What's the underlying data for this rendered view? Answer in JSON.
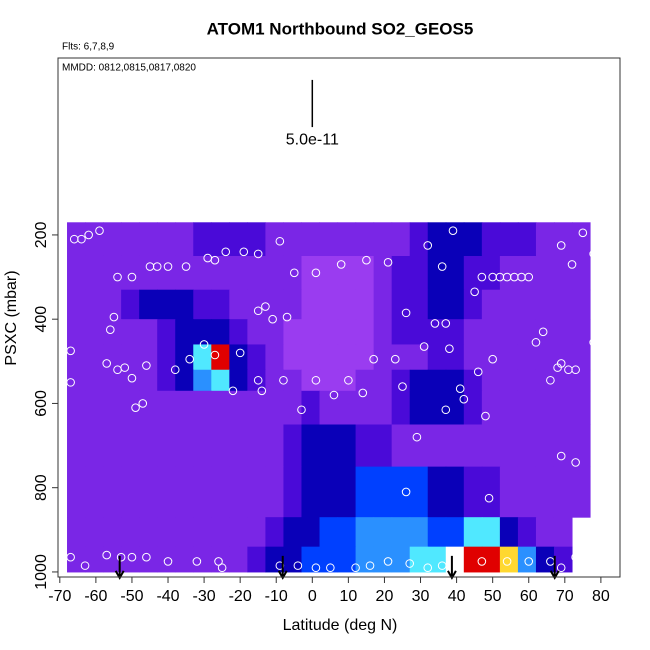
{
  "chart_data": {
    "type": "heatmap",
    "title": "ATOM1 Northbound SO2_GEOS5",
    "flights": "Flts: 6,7,8,9",
    "dates": "MMDD: 0812,0815,0817,0820",
    "x_label": "Latitude (deg N)",
    "y_label": "PSXC (mbar)",
    "xlim": [
      -70.5,
      85.3
    ],
    "ylim": [
      -220,
      1012
    ],
    "y_reversed": true,
    "xticks": [
      -70,
      -60,
      -50,
      -40,
      -30,
      -20,
      -10,
      0,
      10,
      20,
      30,
      40,
      50,
      60,
      70,
      80
    ],
    "yticks": [
      200,
      400,
      600,
      800,
      1000
    ],
    "colorscale": [
      "#9a3cf0",
      "#7a26e6",
      "#4a0ad8",
      "#0a00b8",
      "#0040ff",
      "#2a90ff",
      "#50e8ff",
      "#ffffff",
      "#ffd830",
      "#e00000"
    ],
    "heatmap": {
      "lat_edges": [
        -68,
        -63,
        -58,
        -53,
        -48,
        -43,
        -38,
        -33,
        -28,
        -23,
        -18,
        -13,
        -8,
        -3,
        2,
        7,
        12,
        17,
        22,
        27,
        32,
        37,
        42,
        47,
        52,
        57,
        62,
        67,
        72,
        77
      ],
      "pressure_edges": [
        170,
        250,
        330,
        400,
        460,
        520,
        570,
        650,
        750,
        870,
        940,
        1000
      ],
      "values": [
        [
          1,
          1,
          1,
          1,
          1,
          1,
          1,
          2,
          2,
          2,
          2,
          1,
          1,
          1,
          1,
          1,
          1,
          1,
          1,
          2,
          3,
          3,
          3,
          2,
          2,
          2,
          1,
          1,
          1
        ],
        [
          1,
          1,
          1,
          1,
          1,
          1,
          1,
          1,
          1,
          1,
          1,
          1,
          1,
          0,
          0,
          0,
          0,
          1,
          2,
          2,
          3,
          3,
          2,
          2,
          1,
          1,
          1,
          1,
          1
        ],
        [
          1,
          1,
          1,
          2,
          3,
          3,
          3,
          2,
          2,
          1,
          1,
          1,
          1,
          0,
          0,
          0,
          0,
          1,
          2,
          2,
          3,
          3,
          2,
          1,
          1,
          1,
          1,
          1,
          1
        ],
        [
          1,
          1,
          1,
          1,
          1,
          2,
          3,
          3,
          3,
          2,
          1,
          1,
          0,
          0,
          0,
          0,
          0,
          1,
          2,
          2,
          2,
          2,
          1,
          1,
          1,
          1,
          1,
          1,
          1
        ],
        [
          1,
          1,
          1,
          1,
          1,
          2,
          3,
          6,
          9,
          3,
          2,
          1,
          0,
          0,
          0,
          0,
          0,
          1,
          1,
          1,
          2,
          2,
          1,
          1,
          1,
          1,
          1,
          1,
          1
        ],
        [
          1,
          1,
          1,
          1,
          1,
          2,
          3,
          5,
          6,
          3,
          2,
          1,
          1,
          0,
          0,
          0,
          1,
          1,
          2,
          3,
          3,
          3,
          2,
          1,
          1,
          1,
          1,
          1,
          1
        ],
        [
          1,
          1,
          1,
          1,
          1,
          1,
          1,
          1,
          1,
          1,
          1,
          1,
          1,
          2,
          1,
          1,
          1,
          1,
          2,
          3,
          3,
          3,
          2,
          1,
          1,
          1,
          1,
          1,
          1
        ],
        [
          1,
          1,
          1,
          1,
          1,
          1,
          1,
          1,
          1,
          1,
          1,
          1,
          2,
          3,
          3,
          3,
          2,
          2,
          1,
          1,
          1,
          1,
          1,
          1,
          1,
          1,
          1,
          1,
          1
        ],
        [
          1,
          1,
          1,
          1,
          1,
          1,
          1,
          1,
          1,
          1,
          1,
          1,
          2,
          3,
          3,
          3,
          4,
          4,
          4,
          4,
          3,
          3,
          2,
          2,
          1,
          1,
          1,
          1,
          1
        ],
        [
          1,
          1,
          1,
          1,
          1,
          1,
          1,
          1,
          1,
          1,
          1,
          2,
          3,
          3,
          4,
          4,
          5,
          5,
          5,
          5,
          4,
          4,
          6,
          6,
          3,
          2,
          1,
          1,
          null
        ],
        [
          1,
          1,
          1,
          1,
          1,
          1,
          1,
          1,
          1,
          1,
          2,
          3,
          3,
          4,
          4,
          4,
          5,
          5,
          5,
          6,
          6,
          7,
          9,
          9,
          8,
          5,
          3,
          2,
          null
        ]
      ]
    },
    "points": {
      "lat": [
        -66,
        -64,
        -62,
        -59,
        -54,
        -50,
        -45,
        -43,
        -40,
        -35,
        -29,
        -27,
        -24,
        -19,
        -15,
        -9,
        -5,
        1,
        8,
        15,
        21,
        32,
        36,
        39,
        45,
        47,
        50,
        52,
        54,
        56,
        58,
        60,
        69,
        72,
        75,
        78,
        -15,
        -13,
        -11,
        -7,
        -55,
        -56,
        -67,
        -57,
        -54,
        -50,
        -52,
        -46,
        -38,
        -34,
        -30,
        -27,
        -22,
        -20,
        -14,
        -8,
        -3,
        1,
        6,
        10,
        14,
        17,
        23,
        26,
        34,
        37,
        38,
        37,
        42,
        46,
        48,
        50,
        62,
        64,
        66,
        68,
        69,
        71,
        73,
        78,
        80,
        -49,
        -47,
        -67,
        -15,
        31,
        41,
        25,
        29,
        26,
        49,
        73,
        69,
        78,
        -67,
        -63,
        -57,
        -53,
        -50,
        -46,
        -40,
        -32,
        -26,
        -25,
        -9,
        -4,
        1,
        5,
        12,
        16,
        21,
        27,
        32,
        36,
        40,
        47,
        54,
        60,
        66,
        69,
        73
      ],
      "pressure": [
        210,
        210,
        200,
        190,
        300,
        300,
        275,
        275,
        275,
        275,
        255,
        260,
        240,
        240,
        245,
        215,
        290,
        290,
        270,
        260,
        265,
        225,
        275,
        190,
        335,
        300,
        300,
        300,
        300,
        300,
        300,
        300,
        225,
        270,
        195,
        245,
        380,
        370,
        400,
        395,
        395,
        425,
        475,
        505,
        520,
        540,
        515,
        510,
        520,
        495,
        460,
        485,
        570,
        480,
        570,
        545,
        615,
        545,
        580,
        545,
        575,
        495,
        495,
        385,
        410,
        410,
        470,
        615,
        590,
        525,
        630,
        495,
        455,
        430,
        545,
        515,
        505,
        520,
        520,
        455,
        455,
        610,
        600,
        550,
        545,
        465,
        565,
        560,
        680,
        810,
        825,
        740,
        725,
        905,
        965,
        985,
        960,
        965,
        965,
        965,
        975,
        975,
        975,
        990,
        985,
        985,
        990,
        990,
        990,
        985,
        975,
        980,
        990,
        985,
        990,
        975,
        975,
        975,
        975,
        990,
        965
      ]
    },
    "arrows": {
      "lat": [
        -53.4,
        -8.2,
        38.7,
        67.2
      ],
      "pressure": [
        962,
        1014
      ]
    },
    "scale_bar": {
      "label": "5.0e-11",
      "lat": 0,
      "pressure": [
        -168,
        -56
      ]
    }
  }
}
